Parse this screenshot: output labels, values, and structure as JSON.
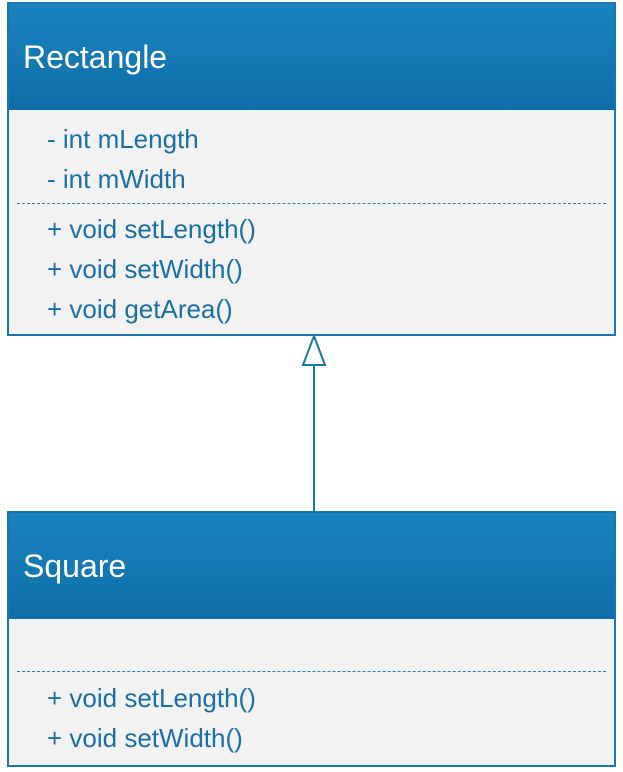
{
  "classes": [
    {
      "name": "Rectangle",
      "attributes": [
        "- int mLength",
        "- int mWidth"
      ],
      "operations": [
        "+ void setLength()",
        "+ void setWidth()",
        "+ void getArea()"
      ]
    },
    {
      "name": "Square",
      "attributes": [],
      "operations": [
        "+ void setLength()",
        "+ void setWidth()"
      ]
    }
  ],
  "relationships": [
    {
      "type": "generalization",
      "from": "Square",
      "to": "Rectangle"
    }
  ],
  "colors": {
    "header": "#1476b0",
    "border": "#1a77ad",
    "body": "#f2f2f2",
    "text": "#1a6fa6"
  }
}
